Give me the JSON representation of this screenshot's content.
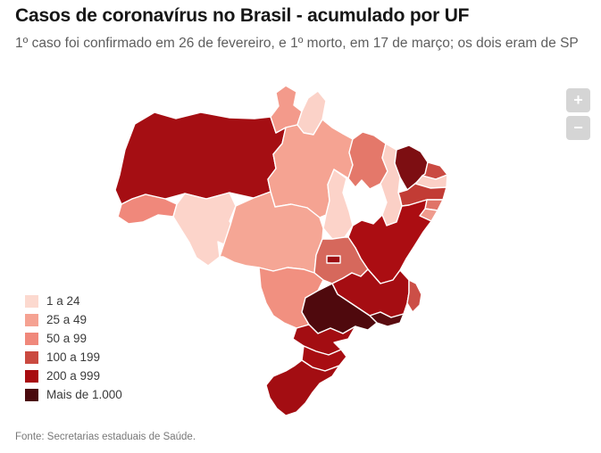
{
  "header": {
    "title": "Casos de coronavírus no Brasil - acumulado por UF",
    "subtitle": "1º caso foi confirmado em 26 de fevereiro, e 1º morto, em 17 de março; os dois eram de SP"
  },
  "map": {
    "zoom_in_label": "+",
    "zoom_out_label": "−"
  },
  "legend": {
    "items": [
      {
        "label": "1 a 24",
        "color": "#fcd9cf"
      },
      {
        "label": "25 a 49",
        "color": "#f5a292"
      },
      {
        "label": "50 a 99",
        "color": "#f0887b"
      },
      {
        "label": "100 a 199",
        "color": "#ca4a40"
      },
      {
        "label": "200 a 999",
        "color": "#a80c10"
      },
      {
        "label": "Mais de 1.000",
        "color": "#4a0a0e"
      }
    ]
  },
  "footer": {
    "source": "Fonte: Secretarias estaduais de Saúde."
  },
  "chart_data": {
    "type": "choropleth",
    "title": "Casos de coronavírus no Brasil - acumulado por UF",
    "legend_position": "bottom-left",
    "classes": [
      "1 a 24",
      "25 a 49",
      "50 a 99",
      "100 a 199",
      "200 a 999",
      "Mais de 1.000"
    ],
    "class_colors": [
      "#fcd9cf",
      "#f5a292",
      "#f0887b",
      "#ca4a40",
      "#a80c10",
      "#4a0a0e"
    ],
    "states": [
      {
        "uf": "AC",
        "name": "Acre",
        "class": "50 a 99",
        "color": "#f0887b"
      },
      {
        "uf": "AL",
        "name": "Alagoas",
        "class": "50 a 99",
        "color": "#e07468"
      },
      {
        "uf": "AP",
        "name": "Amapá",
        "class": "1 a 24",
        "color": "#fbd2c8"
      },
      {
        "uf": "AM",
        "name": "Amazonas",
        "class": "200 a 999",
        "color": "#a50e13"
      },
      {
        "uf": "BA",
        "name": "Bahia",
        "class": "200 a 999",
        "color": "#ab0d12"
      },
      {
        "uf": "CE",
        "name": "Ceará",
        "class": "Mais de 1.000",
        "color": "#7d0e12"
      },
      {
        "uf": "DF",
        "name": "Distrito Federal",
        "class": "200 a 999",
        "color": "#9c0e12"
      },
      {
        "uf": "ES",
        "name": "Espírito Santo",
        "class": "100 a 199",
        "color": "#cc4f47"
      },
      {
        "uf": "GO",
        "name": "Goiás",
        "class": "100 a 199",
        "color": "#d6685c"
      },
      {
        "uf": "MA",
        "name": "Maranhão",
        "class": "50 a 99",
        "color": "#e4786a"
      },
      {
        "uf": "MT",
        "name": "Mato Grosso",
        "class": "25 a 49",
        "color": "#f5a695"
      },
      {
        "uf": "MS",
        "name": "Mato Grosso do Sul",
        "class": "50 a 99",
        "color": "#f19080"
      },
      {
        "uf": "MG",
        "name": "Minas Gerais",
        "class": "200 a 999",
        "color": "#a50d12"
      },
      {
        "uf": "PA",
        "name": "Pará",
        "class": "25 a 49",
        "color": "#f5a392"
      },
      {
        "uf": "PB",
        "name": "Paraíba",
        "class": "1 a 24",
        "color": "#fbd0c6"
      },
      {
        "uf": "PR",
        "name": "Paraná",
        "class": "200 a 999",
        "color": "#a30d12"
      },
      {
        "uf": "PE",
        "name": "Pernambuco",
        "class": "100 a 199",
        "color": "#c23c35"
      },
      {
        "uf": "PI",
        "name": "Piauí",
        "class": "1 a 24",
        "color": "#fbd0c6"
      },
      {
        "uf": "RJ",
        "name": "Rio de Janeiro",
        "class": "Mais de 1.000",
        "color": "#5a0c10"
      },
      {
        "uf": "RN",
        "name": "Rio Grande do Norte",
        "class": "100 a 199",
        "color": "#ca4a42"
      },
      {
        "uf": "RS",
        "name": "Rio Grande do Sul",
        "class": "200 a 999",
        "color": "#a30d12"
      },
      {
        "uf": "RO",
        "name": "Rondônia",
        "class": "1 a 24",
        "color": "#fcd4ca"
      },
      {
        "uf": "RR",
        "name": "Roraima",
        "class": "25 a 49",
        "color": "#f39a8b"
      },
      {
        "uf": "SC",
        "name": "Santa Catarina",
        "class": "200 a 999",
        "color": "#a80d12"
      },
      {
        "uf": "SP",
        "name": "São Paulo",
        "class": "Mais de 1.000",
        "color": "#4f090d"
      },
      {
        "uf": "SE",
        "name": "Sergipe",
        "class": "50 a 99",
        "color": "#ef9b8d"
      },
      {
        "uf": "TO",
        "name": "Tocantins",
        "class": "1 a 24",
        "color": "#fcd3c9"
      }
    ]
  }
}
